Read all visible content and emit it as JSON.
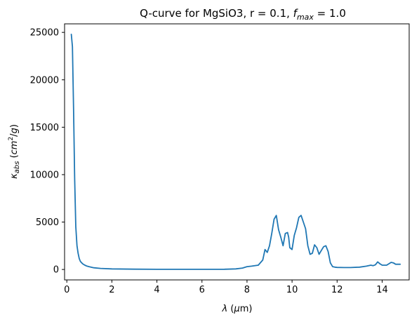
{
  "chart_data": {
    "type": "line",
    "title_parts": [
      "Q-curve for MgSiO3, r = 0.1, ",
      "f",
      "max",
      " = 1.0"
    ],
    "xlabel_parts": [
      "λ",
      " (",
      "μ",
      "m)"
    ],
    "ylabel_parts": [
      "κ",
      "abs",
      " (",
      "cm",
      "2",
      "/",
      "g",
      ")"
    ],
    "xlim": [
      -0.1,
      15.2
    ],
    "ylim": [
      -1100,
      25900
    ],
    "xticks": [
      0,
      2,
      4,
      6,
      8,
      10,
      12,
      14
    ],
    "yticks": [
      0,
      5000,
      10000,
      15000,
      20000,
      25000
    ],
    "grid": false,
    "series": [
      {
        "color": "#1f77b4",
        "x": [
          0.2,
          0.25,
          0.3,
          0.35,
          0.4,
          0.45,
          0.5,
          0.55,
          0.6,
          0.7,
          0.8,
          0.9,
          1.0,
          1.2,
          1.5,
          2.0,
          3.0,
          4.0,
          5.0,
          6.0,
          7.0,
          7.5,
          7.8,
          8.0,
          8.2,
          8.5,
          8.7,
          8.8,
          8.9,
          9.0,
          9.1,
          9.2,
          9.3,
          9.4,
          9.5,
          9.6,
          9.7,
          9.8,
          9.85,
          9.9,
          10.0,
          10.1,
          10.2,
          10.3,
          10.4,
          10.5,
          10.6,
          10.7,
          10.8,
          10.9,
          11.0,
          11.1,
          11.2,
          11.3,
          11.4,
          11.5,
          11.6,
          11.7,
          11.8,
          11.9,
          12.0,
          12.3,
          12.6,
          13.0,
          13.3,
          13.5,
          13.6,
          13.7,
          13.8,
          13.9,
          14.0,
          14.2,
          14.4,
          14.5,
          14.6,
          14.8
        ],
        "y": [
          24800,
          23500,
          17000,
          9500,
          4500,
          2500,
          1700,
          1150,
          850,
          600,
          450,
          350,
          280,
          180,
          110,
          60,
          30,
          20,
          18,
          18,
          25,
          60,
          150,
          300,
          350,
          450,
          1000,
          2100,
          1800,
          2500,
          3800,
          5300,
          5700,
          4200,
          3400,
          2500,
          3800,
          3900,
          3400,
          2300,
          2100,
          3600,
          4400,
          5500,
          5700,
          5000,
          4300,
          2500,
          1600,
          1700,
          2600,
          2300,
          1600,
          2000,
          2400,
          2500,
          1900,
          700,
          300,
          250,
          220,
          200,
          200,
          250,
          350,
          450,
          400,
          500,
          800,
          600,
          450,
          450,
          750,
          700,
          550,
          550
        ]
      }
    ]
  }
}
